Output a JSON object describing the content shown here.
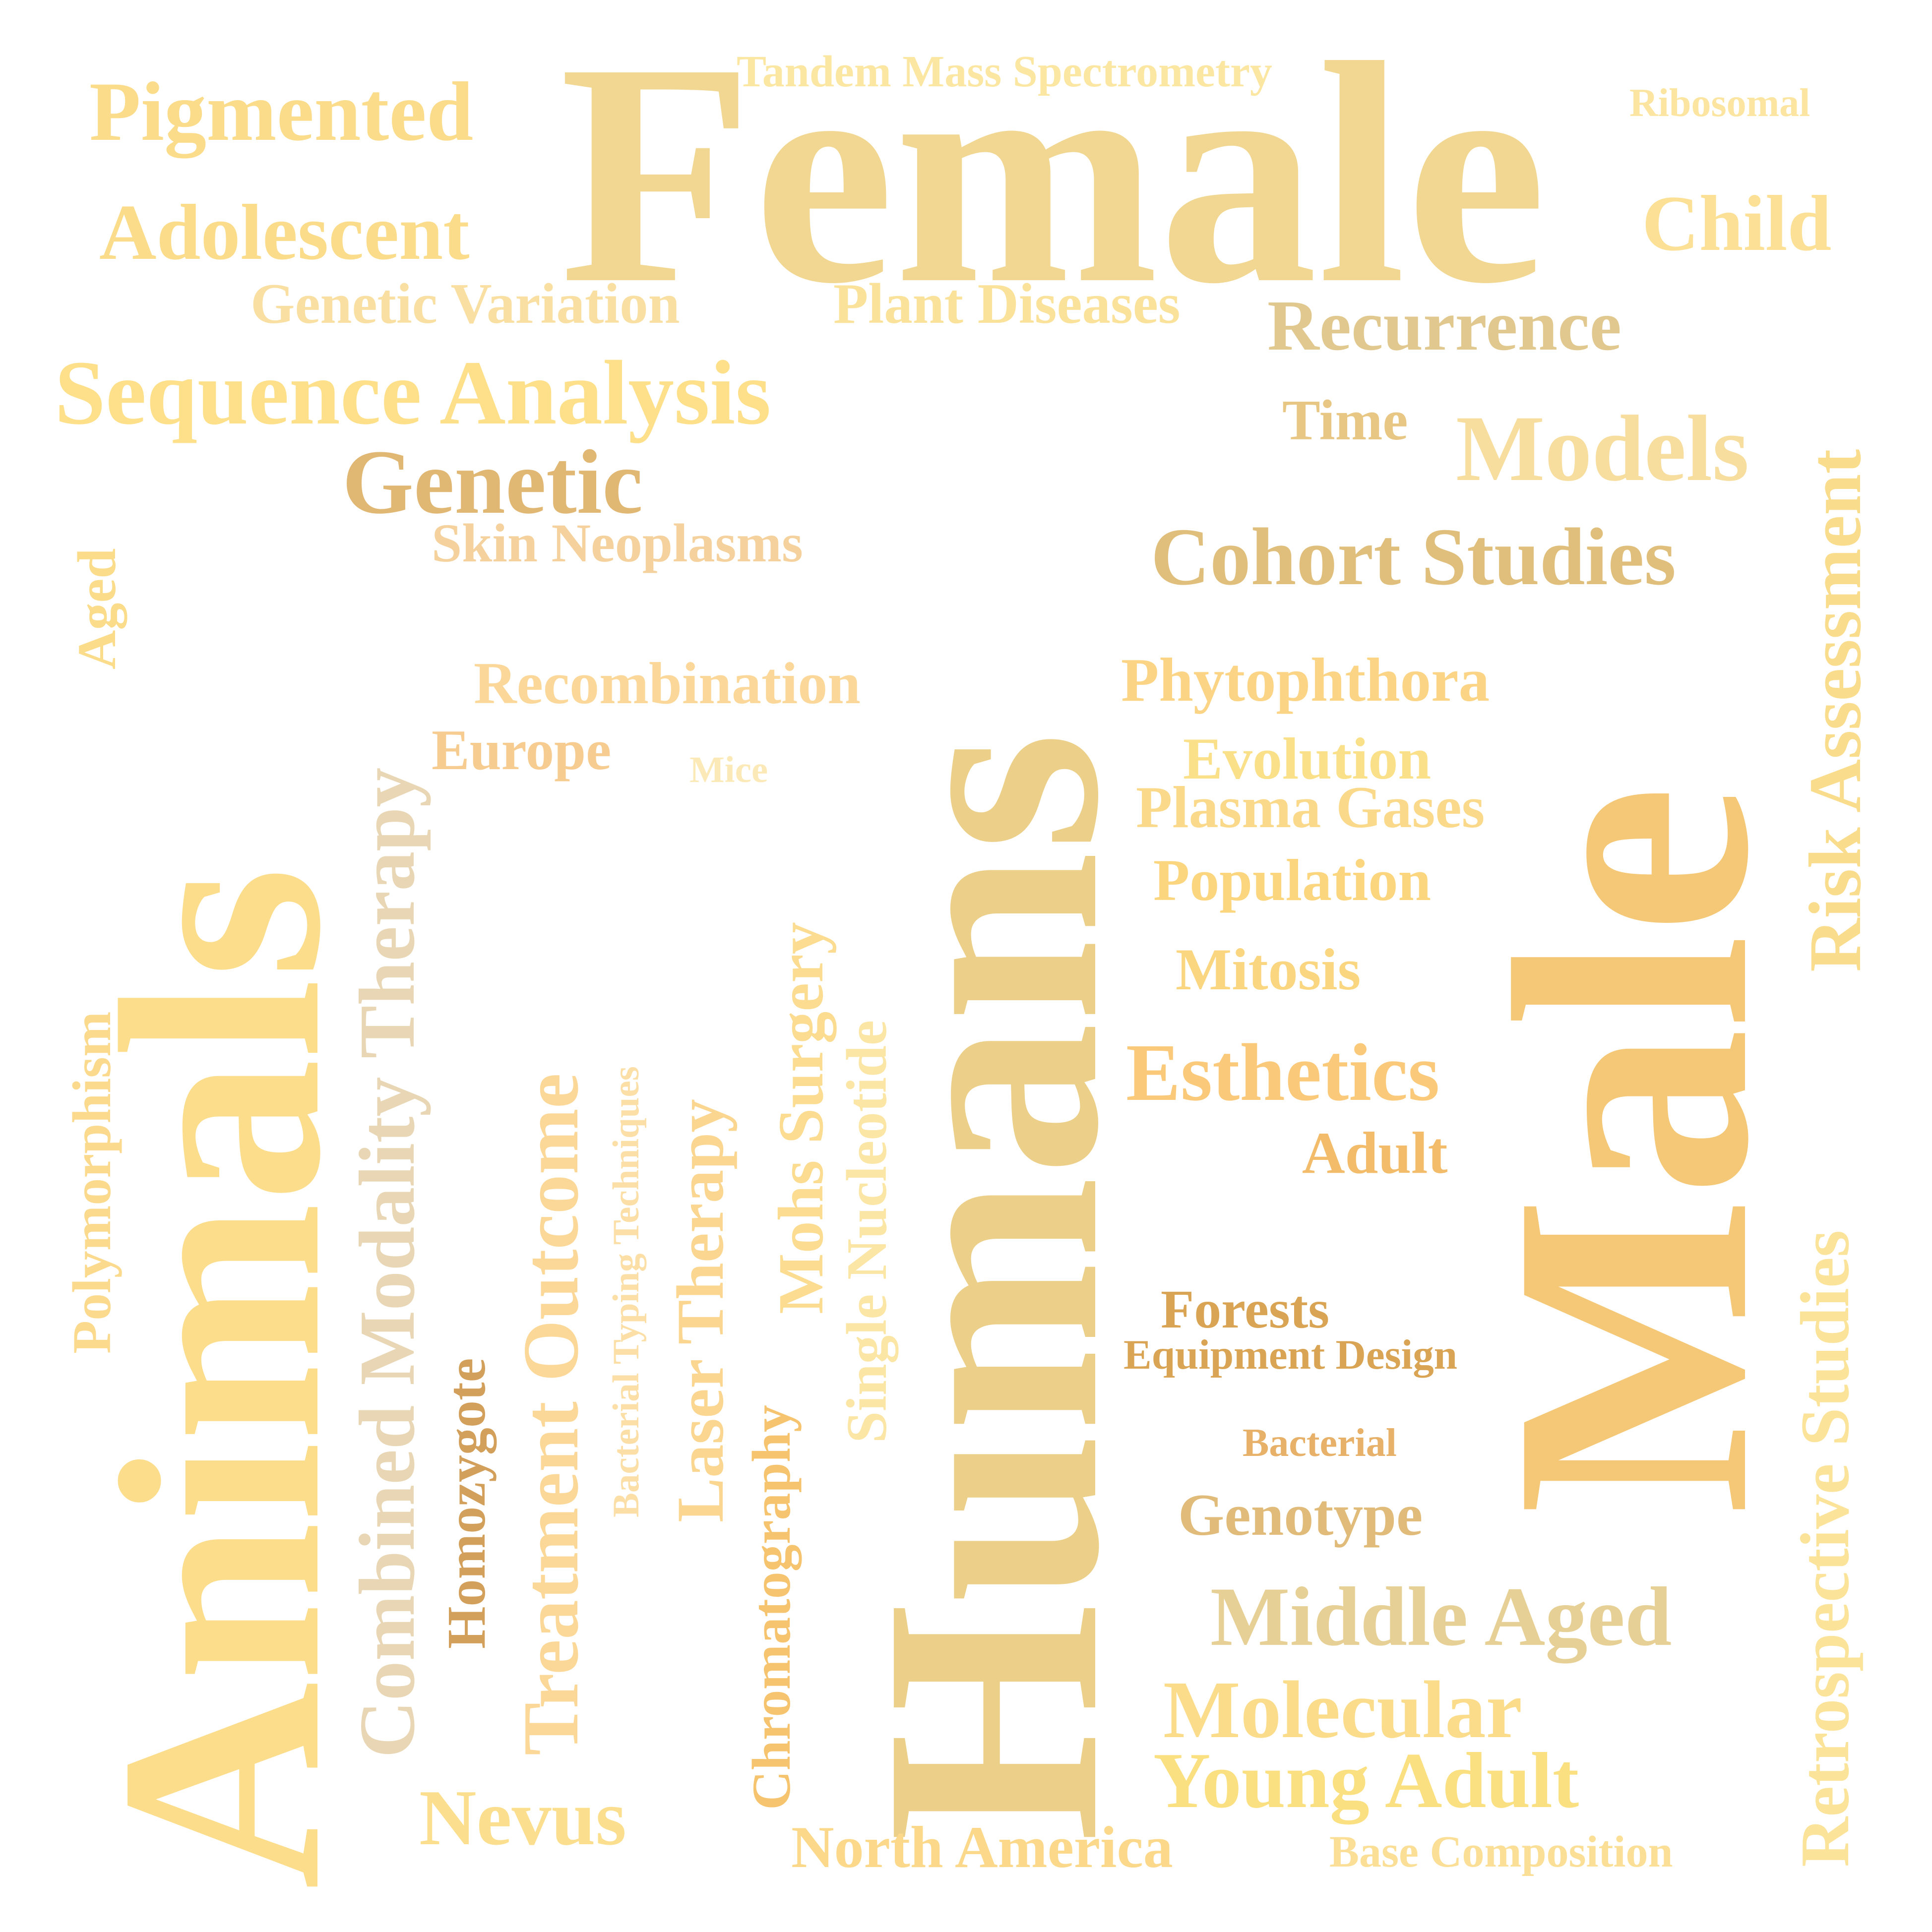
{
  "words": [
    {
      "text": "Female",
      "color": "#f1d791"
    },
    {
      "text": "Humans",
      "color": "#ecd08a"
    },
    {
      "text": "Male",
      "color": "#f5c877"
    },
    {
      "text": "Animals",
      "color": "#fbdd8c"
    },
    {
      "text": "Tandem Mass Spectrometry",
      "color": "#fbe6a2"
    },
    {
      "text": "Pigmented",
      "color": "#fbdc8a"
    },
    {
      "text": "Ribosomal",
      "color": "#fbe5a0"
    },
    {
      "text": "Adolescent",
      "color": "#fbdc8a"
    },
    {
      "text": "Child",
      "color": "#fbe096"
    },
    {
      "text": "Genetic Variation",
      "color": "#f9dfa1"
    },
    {
      "text": "Plant Diseases",
      "color": "#fbe29a"
    },
    {
      "text": "Recurrence",
      "color": "#e1c88f"
    },
    {
      "text": "Sequence Analysis",
      "color": "#fde089"
    },
    {
      "text": "Time",
      "color": "#e8c684"
    },
    {
      "text": "Models",
      "color": "#f7dd9e"
    },
    {
      "text": "Genetic",
      "color": "#e1b774"
    },
    {
      "text": "Skin Neoplasms",
      "color": "#f5d29d"
    },
    {
      "text": "Cohort Studies",
      "color": "#e0bf7c"
    },
    {
      "text": "Risk Assessment",
      "color": "#f9dc8c"
    },
    {
      "text": "Aged",
      "color": "#fbdc8a"
    },
    {
      "text": "Recombination",
      "color": "#fbd89a"
    },
    {
      "text": "Combined Modality Therapy",
      "color": "#e8d6b4"
    },
    {
      "text": "Phytophthora",
      "color": "#fbd486"
    },
    {
      "text": "Europe",
      "color": "#f7cc91"
    },
    {
      "text": "Mice",
      "color": "#fbeab8"
    },
    {
      "text": "Evolution",
      "color": "#fbe08a"
    },
    {
      "text": "Mohs Surgery",
      "color": "#fbdc90"
    },
    {
      "text": "Plasma Gases",
      "color": "#fbd98a"
    },
    {
      "text": "Treatment Outcome",
      "color": "#fbd897"
    },
    {
      "text": "Population",
      "color": "#fbd67e"
    },
    {
      "text": "Polymorphism",
      "color": "#fbda8e"
    },
    {
      "text": "Bacterial Typing Techniques",
      "color": "#fbdfa7"
    },
    {
      "text": "Laser Therapy",
      "color": "#fbd690"
    },
    {
      "text": "Single Nucleotide",
      "color": "#fbe6a6"
    },
    {
      "text": "Mitosis",
      "color": "#fbd680"
    },
    {
      "text": "Esthetics",
      "color": "#fbc97a"
    },
    {
      "text": "Retrospective Studies",
      "color": "#fbe399"
    },
    {
      "text": "Adult",
      "color": "#f3bc6b"
    },
    {
      "text": "Forests",
      "color": "#d9a454"
    },
    {
      "text": "Equipment Design",
      "color": "#d9a454"
    },
    {
      "text": "Homozygote",
      "color": "#d3a05c"
    },
    {
      "text": "Chromatography",
      "color": "#f6c46e"
    },
    {
      "text": "Bacterial",
      "color": "#e7b169"
    },
    {
      "text": "Genotype",
      "color": "#e0bb79"
    },
    {
      "text": "Middle Aged",
      "color": "#e7d095"
    },
    {
      "text": "Molecular",
      "color": "#fbdc8a"
    },
    {
      "text": "Young Adult",
      "color": "#fbe081"
    },
    {
      "text": "Nevus",
      "color": "#fbdf8e"
    },
    {
      "text": "North America",
      "color": "#fbd88a"
    },
    {
      "text": "Base Composition",
      "color": "#fbdf96"
    }
  ]
}
